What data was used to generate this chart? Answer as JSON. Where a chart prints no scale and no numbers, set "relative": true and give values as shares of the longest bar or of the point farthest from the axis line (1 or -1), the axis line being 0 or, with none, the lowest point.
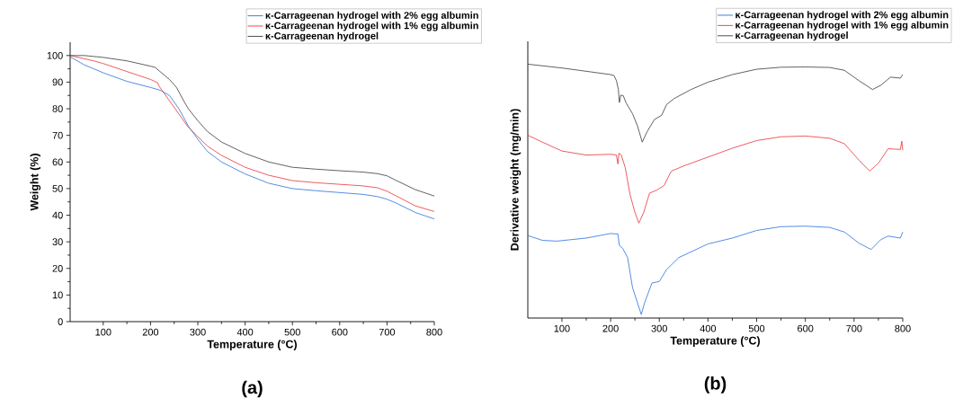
{
  "chart_data": [
    {
      "type": "line",
      "xlabel": "Temperature (°C)",
      "ylabel": "Weight (%)",
      "xlim": [
        30,
        800
      ],
      "ylim": [
        0,
        105
      ],
      "xticks": [
        100,
        200,
        300,
        400,
        500,
        600,
        700,
        800
      ],
      "yticks": [
        0,
        10,
        20,
        30,
        40,
        50,
        60,
        70,
        80,
        90,
        100
      ],
      "legend": "top right",
      "annotations": [
        "(a)"
      ],
      "series": [
        {
          "name": "κ-Carrageenan hydrogel with 2% egg albumin",
          "color": "#2a70dc",
          "x": [
            30,
            60,
            100,
            150,
            200,
            220,
            240,
            260,
            280,
            300,
            320,
            350,
            400,
            450,
            500,
            550,
            600,
            650,
            680,
            700,
            720,
            760,
            800
          ],
          "values": [
            99.5,
            96.5,
            93.5,
            90.3,
            88,
            87,
            85,
            80,
            73.5,
            68.5,
            64,
            60,
            55.5,
            52,
            50,
            49.2,
            48.5,
            47.8,
            47,
            46,
            44.5,
            41,
            38.6
          ]
        },
        {
          "name": "κ-Carrageenan hydrogel with 1% egg albumin",
          "color": "#e8333a",
          "x": [
            30,
            80,
            100,
            150,
            200,
            215,
            218,
            240,
            260,
            280,
            300,
            320,
            350,
            400,
            450,
            500,
            550,
            600,
            650,
            680,
            700,
            720,
            760,
            800
          ],
          "values": [
            100,
            98,
            97,
            94,
            91,
            89.8,
            88.5,
            83,
            78,
            73,
            69.5,
            66,
            62.5,
            58,
            55,
            53,
            52.2,
            51.6,
            51,
            50.3,
            49,
            47.2,
            43.5,
            41.4
          ]
        },
        {
          "name": "κ-Carrageenan hydrogel",
          "color": "#3a3a3a",
          "x": [
            30,
            60,
            100,
            150,
            200,
            210,
            220,
            240,
            255,
            270,
            280,
            300,
            320,
            350,
            400,
            450,
            500,
            550,
            600,
            650,
            680,
            700,
            720,
            760,
            800
          ],
          "values": [
            100,
            100,
            99.3,
            98,
            96,
            95.5,
            94,
            91,
            88,
            83,
            80,
            75.5,
            71.5,
            67.5,
            63.2,
            60,
            58,
            57.3,
            56.7,
            56.2,
            55.6,
            54.8,
            53,
            49.6,
            47.2
          ]
        }
      ]
    },
    {
      "type": "line",
      "xlabel": "Temperature (°C)",
      "ylabel": "Derivative weight (mg/min)",
      "xlim": [
        30,
        800
      ],
      "xticks": [
        100,
        200,
        300,
        400,
        500,
        600,
        700,
        800
      ],
      "relative": true,
      "tick_labels": "x",
      "legend": "top right",
      "annotations": [
        "(b)"
      ],
      "series": [
        {
          "name": "κ-Carrageenan hydrogel with 2% egg albumin",
          "color": "#2a70dc",
          "x": [
            30,
            60,
            90,
            150,
            200,
            215,
            218,
            225,
            235,
            245,
            255,
            263,
            270,
            285,
            300,
            315,
            340,
            400,
            450,
            500,
            550,
            600,
            650,
            680,
            710,
            735,
            755,
            770,
            795,
            800
          ],
          "values": [
            0.325,
            0.306,
            0.303,
            0.315,
            0.333,
            0.331,
            0.286,
            0.274,
            0.238,
            0.12,
            0.061,
            0.014,
            0.061,
            0.138,
            0.144,
            0.191,
            0.238,
            0.292,
            0.315,
            0.345,
            0.36,
            0.362,
            0.357,
            0.339,
            0.295,
            0.27,
            0.309,
            0.323,
            0.315,
            0.339
          ]
        },
        {
          "name": "κ-Carrageenan hydrogel with 1% egg albumin",
          "color": "#e8333a",
          "x": [
            30,
            60,
            100,
            150,
            200,
            212,
            215,
            217,
            222,
            230,
            240,
            250,
            258,
            268,
            280,
            295,
            310,
            322,
            325,
            350,
            400,
            450,
            500,
            550,
            600,
            650,
            680,
            710,
            732,
            750,
            770,
            795,
            798,
            800
          ],
          "values": [
            0.72,
            0.693,
            0.658,
            0.642,
            0.645,
            0.642,
            0.607,
            0.649,
            0.642,
            0.593,
            0.486,
            0.416,
            0.374,
            0.416,
            0.492,
            0.504,
            0.522,
            0.569,
            0.579,
            0.599,
            0.634,
            0.669,
            0.699,
            0.714,
            0.717,
            0.708,
            0.687,
            0.622,
            0.579,
            0.61,
            0.667,
            0.664,
            0.697,
            0.661
          ]
        },
        {
          "name": "κ-Carrageenan hydrogel",
          "color": "#3a3a3a",
          "x": [
            30,
            100,
            200,
            207,
            212,
            216,
            218,
            221,
            226,
            232,
            245,
            255,
            265,
            275,
            290,
            305,
            315,
            330,
            365,
            400,
            450,
            500,
            550,
            600,
            650,
            680,
            710,
            738,
            755,
            775,
            795,
            800
          ],
          "values": [
            1.0,
            0.985,
            0.959,
            0.955,
            0.935,
            0.9,
            0.849,
            0.878,
            0.876,
            0.847,
            0.805,
            0.758,
            0.693,
            0.734,
            0.782,
            0.799,
            0.841,
            0.864,
            0.9,
            0.929,
            0.959,
            0.98,
            0.988,
            0.989,
            0.987,
            0.976,
            0.935,
            0.9,
            0.917,
            0.949,
            0.945,
            0.959
          ]
        }
      ]
    }
  ]
}
